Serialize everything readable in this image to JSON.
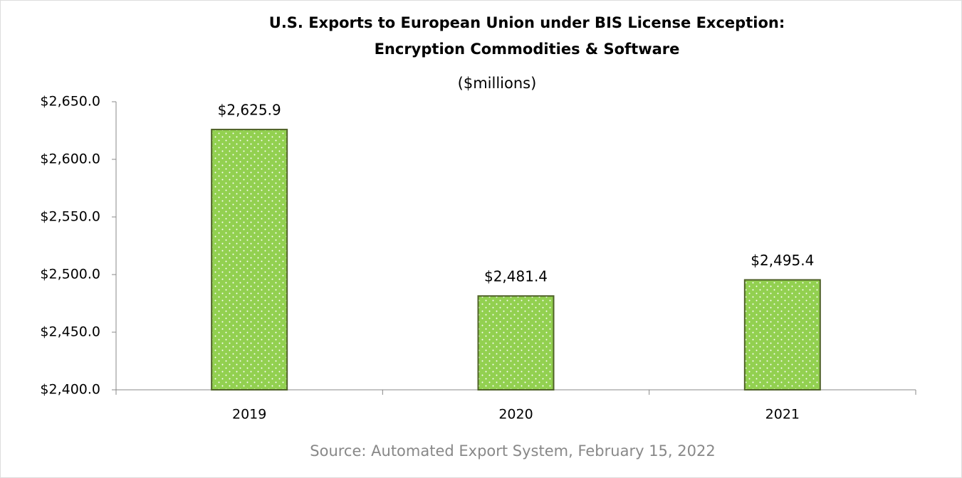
{
  "chart_data": {
    "type": "bar",
    "title": [
      "U.S. Exports to European Union under BIS License Exception:",
      "Encryption Commodities & Software"
    ],
    "subtitle": "($millions)",
    "categories": [
      "2019",
      "2020",
      "2021"
    ],
    "values": [
      2625.9,
      2481.4,
      2495.4
    ],
    "value_labels": [
      "$2,625.9",
      "$2,481.4",
      "$2,495.4"
    ],
    "color": "#92d050",
    "edge_color": "#4f6228",
    "ylim": [
      2400,
      2650
    ],
    "yticks": [
      {
        "value": 2400,
        "label": "$2,400.0"
      },
      {
        "value": 2450,
        "label": "$2,450.0"
      },
      {
        "value": 2500,
        "label": "$2,500.0"
      },
      {
        "value": 2550,
        "label": "$2,550.0"
      },
      {
        "value": 2600,
        "label": "$2,600.0"
      },
      {
        "value": 2650,
        "label": "$2,650.0"
      }
    ],
    "grid": false,
    "source": "Source: Automated Export System, February 15, 2022"
  }
}
